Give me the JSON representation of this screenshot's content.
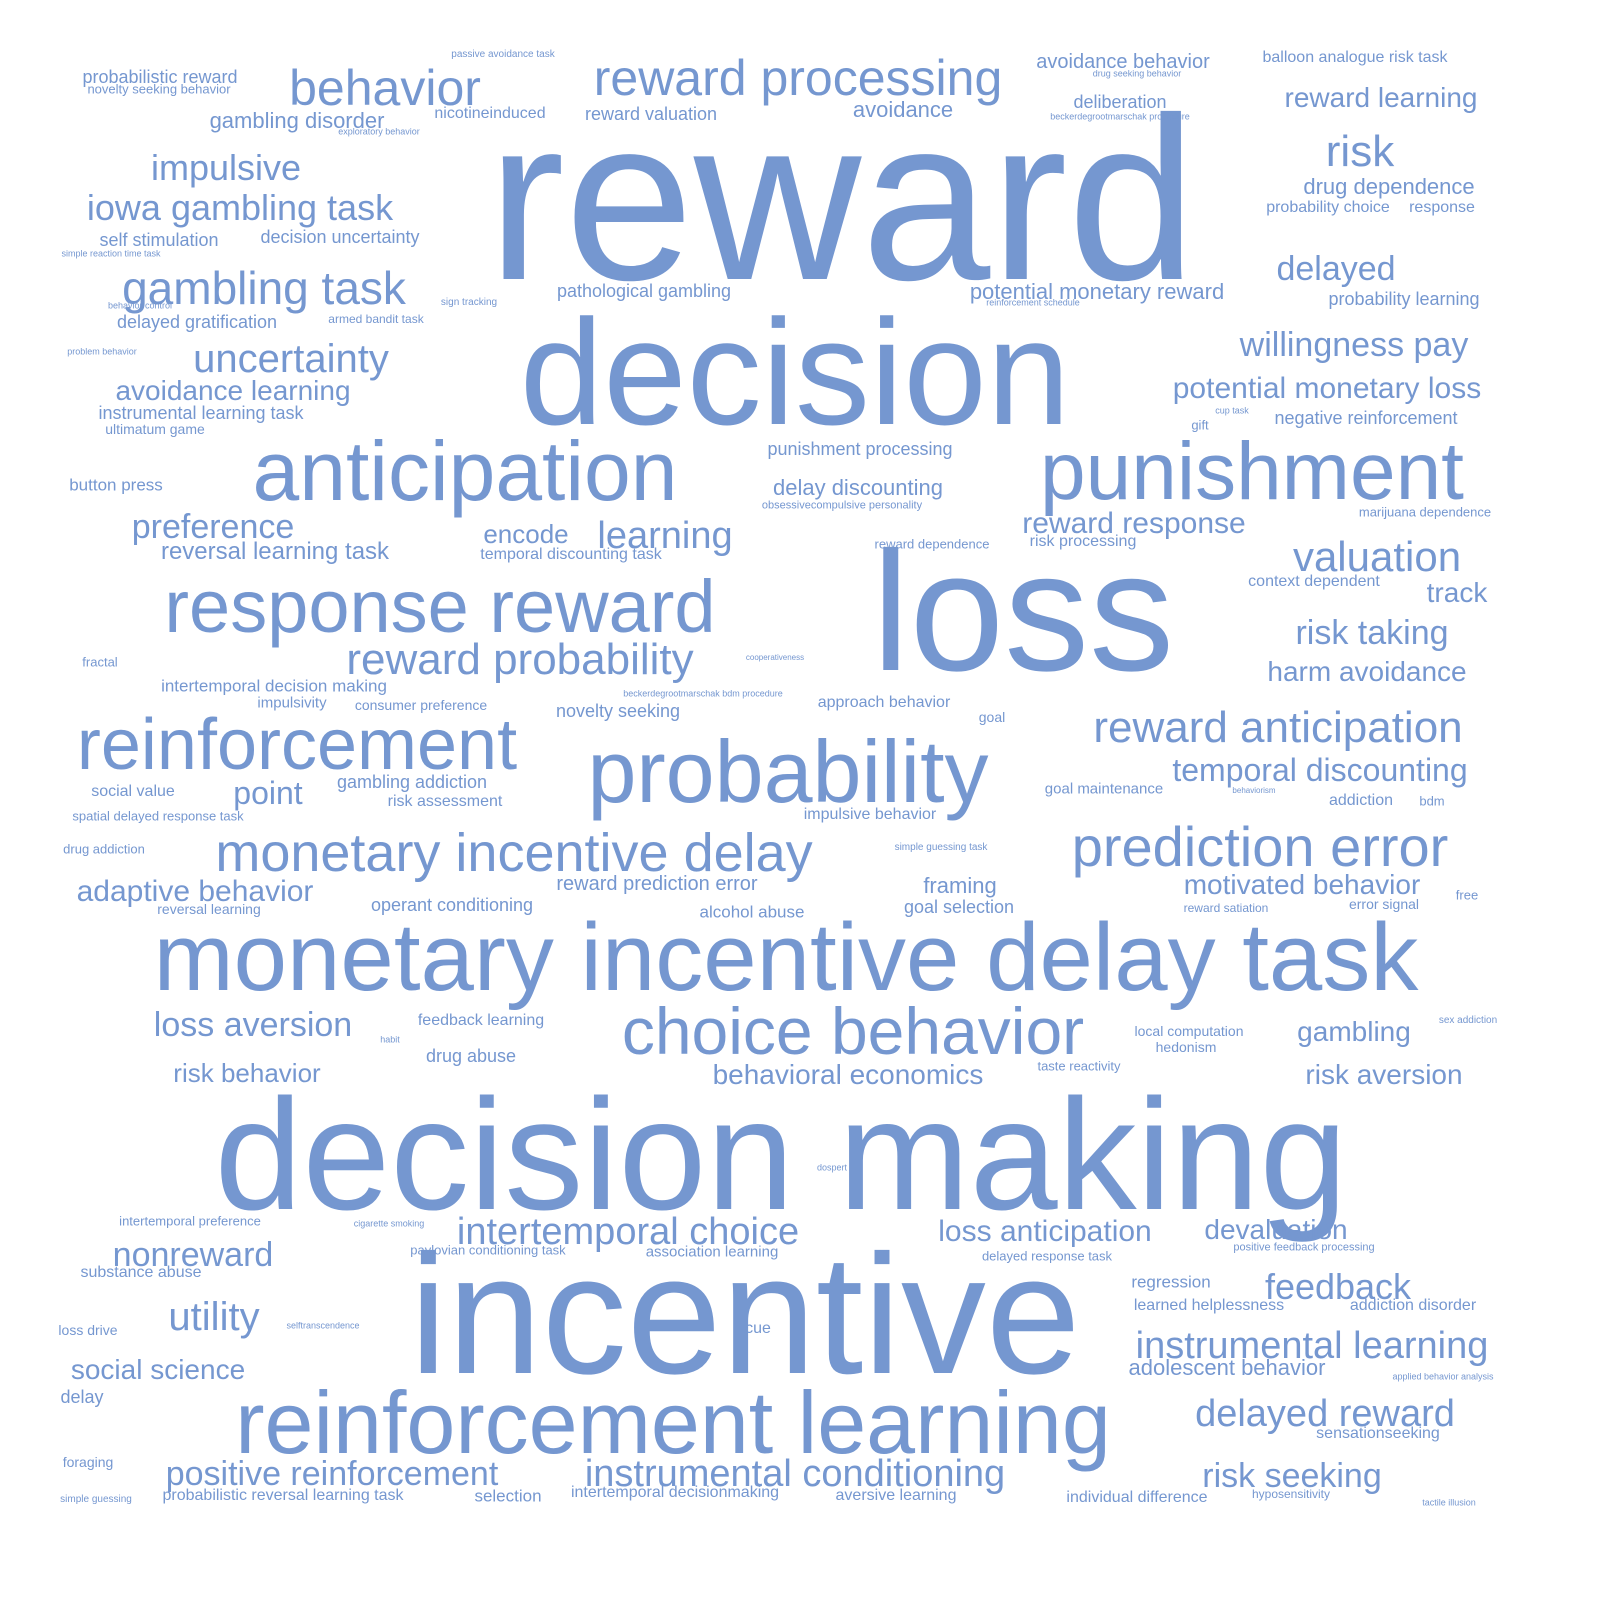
{
  "color": "#7597d0",
  "background": "#ffffff",
  "words": [
    "reward",
    "decision",
    "loss",
    "decision making",
    "incentive",
    "monetary incentive delay task",
    "reinforcement learning",
    "response reward",
    "anticipation",
    "punishment",
    "probability",
    "reinforcement",
    "choice behavior",
    "reward processing",
    "behavior",
    "monetary incentive delay",
    "prediction error",
    "reward anticipation",
    "reward probability",
    "intertemporal choice",
    "positive reinforcement",
    "instrumental conditioning",
    "instrumental learning",
    "gambling task",
    "iowa gambling task",
    "uncertainty",
    "impulsive",
    "nonreward",
    "utility",
    "feedback",
    "delayed reward",
    "risk seeking",
    "valuation",
    "willingness pay",
    "loss anticipation",
    "temporal discounting",
    "risk",
    "preference",
    "learning",
    "adaptive behavior",
    "loss aversion",
    "risk taking",
    "behavioral economics",
    "motivated behavior",
    "potential monetary loss",
    "delayed",
    "avoidance learning",
    "reversal learning task",
    "reward response",
    "harm avoidance",
    "encode",
    "reward learning",
    "devaluation",
    "gambling",
    "risk aversion",
    "risk behavior",
    "point",
    "social science",
    "adolescent behavior",
    "drug dependence",
    "gambling disorder",
    "avoidance",
    "track",
    "delay discounting",
    "potential monetary reward",
    "avoidance behavior",
    "pathological gambling",
    "novelty seeking",
    "framing",
    "reward prediction error",
    "probability learning",
    "negative reinforcement",
    "punishment processing",
    "decision uncertainty",
    "probabilistic reward",
    "self stimulation",
    "delayed gratification",
    "instrumental learning task",
    "ultimatum game",
    "operant conditioning",
    "reward valuation",
    "deliberation",
    "probability choice",
    "response",
    "button press",
    "intertemporal decision making",
    "drug abuse",
    "alcohol abuse",
    "goal selection",
    "social value",
    "impulsivity",
    "risk assessment",
    "gambling addiction",
    "addiction",
    "context dependent",
    "regression",
    "learned helplessness",
    "addiction disorder",
    "sensationseeking",
    "individual difference",
    "association learning",
    "pavlovian conditioning task",
    "nicotineinduced",
    "feedback learning",
    "temporal discounting task",
    "risk processing",
    "reward dependence",
    "cue",
    "substance abuse",
    "delay",
    "foraging",
    "selection",
    "intertemporal decisionmaking",
    "aversive learning",
    "hedonism",
    "local computation",
    "taste reactivity",
    "impulsive behavior",
    "approach behavior",
    "goal maintenance",
    "reversal learning",
    "error signal",
    "reward satiation",
    "probabilistic reversal learning task",
    "intertemporal preference",
    "consumer preference",
    "novelty seeking behavior",
    "balloon analogue risk task",
    "passive avoidance task",
    "drug seeking behavior",
    "exploratory behavior",
    "beckerdegrootmarschak procedure",
    "simple reaction time task",
    "behavior control",
    "armed bandit task",
    "sign tracking",
    "reinforcement schedule",
    "problem behavior",
    "cup task",
    "gift",
    "obsessivecompulsive personality",
    "marijuana dependence",
    "fractal",
    "cooperativeness",
    "beckerdegrootmarschak bdm procedure",
    "goal",
    "spatial delayed response task",
    "behaviorism",
    "bdm",
    "drug addiction",
    "simple guessing task",
    "free",
    "habit",
    "sex addiction",
    "dospert",
    "cigarette smoking",
    "positive feedback processing",
    "delayed response task",
    "loss drive",
    "selftranscendence",
    "applied behavior analysis",
    "simple guessing",
    "hyposensitivity",
    "tactile illusion"
  ]
}
